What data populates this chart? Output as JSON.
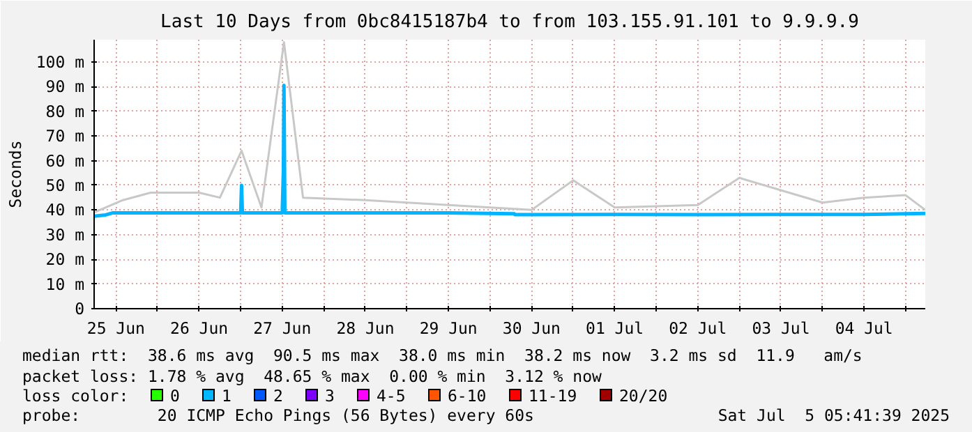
{
  "chart_data": {
    "type": "line",
    "title": "Last 10 Days from 0bc8415187b4 to from 103.155.91.101 to 9.9.9.9",
    "ylabel": "Seconds",
    "xlim": [
      "2025-06-25T05:41",
      "2025-07-05T05:41"
    ],
    "xticks": [
      {
        "value": "2025-06-25T12:00",
        "label": "25 Jun"
      },
      {
        "value": "2025-06-26T00:00",
        "label": null
      },
      {
        "value": "2025-06-26T12:00",
        "label": "26 Jun"
      },
      {
        "value": "2025-06-27T00:00",
        "label": null
      },
      {
        "value": "2025-06-27T12:00",
        "label": "27 Jun"
      },
      {
        "value": "2025-06-28T00:00",
        "label": null
      },
      {
        "value": "2025-06-28T12:00",
        "label": "28 Jun"
      },
      {
        "value": "2025-06-29T00:00",
        "label": null
      },
      {
        "value": "2025-06-29T12:00",
        "label": "29 Jun"
      },
      {
        "value": "2025-06-30T00:00",
        "label": null
      },
      {
        "value": "2025-06-30T12:00",
        "label": "30 Jun"
      },
      {
        "value": "2025-07-01T00:00",
        "label": null
      },
      {
        "value": "2025-07-01T12:00",
        "label": "01 Jul"
      },
      {
        "value": "2025-07-02T00:00",
        "label": null
      },
      {
        "value": "2025-07-02T12:00",
        "label": "02 Jul"
      },
      {
        "value": "2025-07-03T00:00",
        "label": null
      },
      {
        "value": "2025-07-03T12:00",
        "label": "03 Jul"
      },
      {
        "value": "2025-07-04T00:00",
        "label": null
      },
      {
        "value": "2025-07-04T12:00",
        "label": "04 Jul"
      },
      {
        "value": "2025-07-05T00:00",
        "label": null
      }
    ],
    "ylim": [
      0,
      109
    ],
    "yticks": [
      0,
      {
        "value": 10,
        "label": "10 m"
      },
      {
        "value": 20,
        "label": "20 m"
      },
      {
        "value": 30,
        "label": "30 m"
      },
      {
        "value": 40,
        "label": "40 m"
      },
      {
        "value": 50,
        "label": "50 m"
      },
      {
        "value": 60,
        "label": "60 m"
      },
      {
        "value": 70,
        "label": "70 m"
      },
      {
        "value": 80,
        "label": "80 m"
      },
      {
        "value": 90,
        "label": "90 m"
      },
      {
        "value": 100,
        "label": "100 m"
      }
    ],
    "grid": true,
    "legend": "bottom",
    "legend_title": "loss color:",
    "series": [
      {
        "color": "#c8c8c8",
        "x": [
          "2025-06-25T05:41",
          "2025-06-25T14:00",
          "2025-06-25T22:00",
          "2025-06-26T12:00",
          "2025-06-26T18:00",
          "2025-06-27T00:15",
          "2025-06-27T06:00",
          "2025-06-27T12:30",
          "2025-06-27T18:00",
          "2025-06-28T12:00",
          "2025-06-29T00:00",
          "2025-06-30T12:00",
          "2025-07-01T00:00",
          "2025-07-01T12:00",
          "2025-07-02T12:00",
          "2025-07-03T00:00",
          "2025-07-04T00:00",
          "2025-07-04T12:00",
          "2025-07-05T00:00",
          "2025-07-05T05:41"
        ],
        "values": [
          39,
          44,
          47,
          47,
          45,
          64,
          41,
          108,
          45,
          44,
          43,
          40,
          52,
          41,
          42,
          53,
          43,
          45,
          46,
          40
        ]
      },
      {
        "color": "#00b4ff",
        "x": [
          "2025-06-25T05:41",
          "2025-06-25T09:00",
          "2025-06-25T11:00",
          "2025-06-26T20:00",
          "2025-06-27T00:00",
          "2025-06-27T00:15",
          "2025-06-27T00:30",
          "2025-06-27T12:00",
          "2025-06-27T12:20",
          "2025-06-27T12:30",
          "2025-06-27T12:45",
          "2025-06-29T12:00",
          "2025-06-30T07:00",
          "2025-06-30T07:10",
          "2025-07-01T12:00",
          "2025-07-02T12:00",
          "2025-07-03T12:00",
          "2025-07-04T12:00",
          "2025-07-05T05:41"
        ],
        "values": [
          37.5,
          38,
          38.8,
          38.8,
          38.8,
          50,
          38.8,
          38.8,
          56,
          90.5,
          38.8,
          38.8,
          38.5,
          38.1,
          38.2,
          38.1,
          38.2,
          38.2,
          38.6
        ]
      },
      {
        "name": "0",
        "color": "#26ff00"
      },
      {
        "name": "1",
        "color": "#00b8ff"
      },
      {
        "name": "2",
        "color": "#0059ff"
      },
      {
        "name": "3",
        "color": "#7e00ff"
      },
      {
        "name": "4-5",
        "color": "#ff00ff"
      },
      {
        "name": "6-10",
        "color": "#ff5500"
      },
      {
        "name": "11-19",
        "color": "#ff0000"
      },
      {
        "name": "20/20",
        "color": "#a10000"
      }
    ],
    "annotations": [
      "median rtt:  38.6 ms avg  90.5 ms max  38.0 ms min  38.2 ms now  3.2 ms sd  11.9   am/s",
      "packet loss: 1.78 % avg  48.65 % max  0.00 % min  3.12 % now",
      "probe:        20 ICMP Echo Pings (56 Bytes) every 60s",
      "Sat Jul  5 05:41:39 2025"
    ]
  }
}
